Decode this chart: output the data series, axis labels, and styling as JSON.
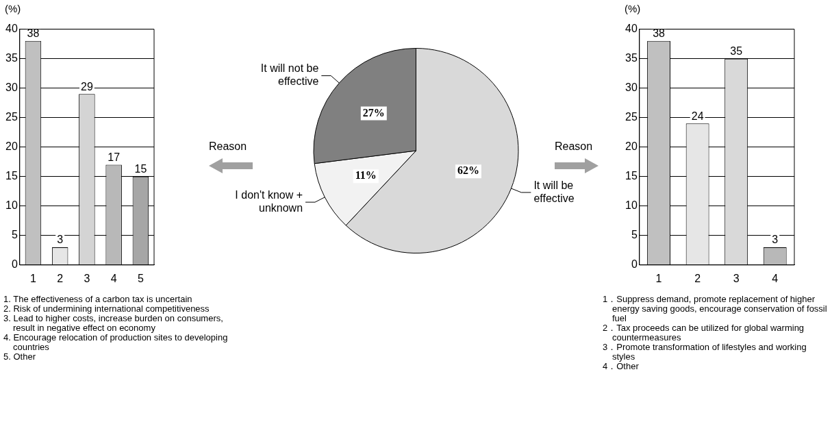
{
  "chart_data": [
    {
      "type": "bar",
      "ylabel": "(%)",
      "categories": [
        "1",
        "2",
        "3",
        "4",
        "5"
      ],
      "values": [
        38,
        3,
        29,
        17,
        15
      ],
      "colors": [
        "#c0c0c0",
        "#e6e6e6",
        "#d4d4d4",
        "#b8b8b8",
        "#a6a6a6"
      ],
      "ylim": [
        0,
        40
      ],
      "yticks": [
        0,
        5,
        10,
        15,
        20,
        25,
        30,
        35,
        40
      ],
      "grid": "y",
      "data_labels": true,
      "legend": false,
      "annotations": [
        "Reason",
        "1. The effectiveness of a carbon tax is uncertain",
        "2. Risk of undermining international competitiveness",
        "3. Lead to higher costs, increase burden on consumers, result in negative effect on economy",
        "4. Encourage relocation of production sites to developing countries",
        "5. Other"
      ]
    },
    {
      "type": "pie",
      "categories": [
        "It will be effective",
        "I don't know + unknown",
        "It will not be effective"
      ],
      "values": [
        62,
        11,
        27
      ],
      "colors": [
        "#d9d9d9",
        "#f2f2f2",
        "#808080"
      ],
      "value_labels": [
        "62%",
        "11%",
        "27%"
      ],
      "legend": false
    },
    {
      "type": "bar",
      "ylabel": "(%)",
      "categories": [
        "1",
        "2",
        "3",
        "4"
      ],
      "values": [
        38,
        24,
        35,
        3
      ],
      "colors": [
        "#c0c0c0",
        "#e6e6e6",
        "#d9d9d9",
        "#b8b8b8"
      ],
      "ylim": [
        0,
        40
      ],
      "yticks": [
        0,
        5,
        10,
        15,
        20,
        25,
        30,
        35,
        40
      ],
      "grid": "y",
      "data_labels": true,
      "legend": false,
      "annotations": [
        "Reason",
        "1．Suppress demand, promote replacement of higher energy saving goods, encourage conservation of fossil fuel",
        "2．Tax proceeds can be utilized for global warming countermeasures",
        "3．Promote transformation of lifestyles and working styles",
        "4．Other"
      ]
    }
  ]
}
